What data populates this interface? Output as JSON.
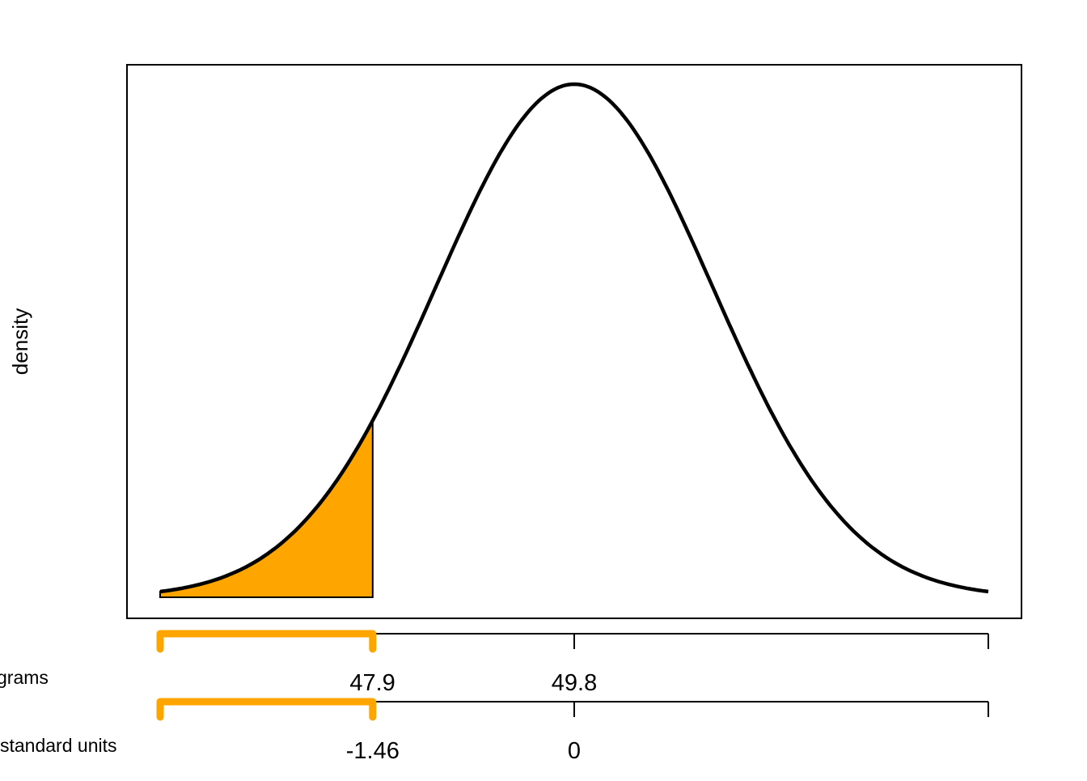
{
  "chart_data": {
    "type": "area",
    "distribution": "normal",
    "mean": 49.8,
    "sd": 1.3,
    "x_range_standard_units": [
      -3,
      3
    ],
    "shaded_region_standard_units": [
      -3,
      -1.46
    ],
    "shade_color": "#FFA500",
    "curve_color": "#000000",
    "ylabel": "density",
    "axes": [
      {
        "label": "grams",
        "ticks": [
          47.9,
          49.8,
          53.7
        ],
        "tick_labels": [
          "47.9",
          "49.8",
          ""
        ]
      },
      {
        "label": "standard units",
        "ticks": [
          -1.46,
          0,
          3
        ],
        "tick_labels": [
          "-1.46",
          "0",
          ""
        ]
      }
    ],
    "bracket_color": "#FFA500",
    "grid": false
  }
}
